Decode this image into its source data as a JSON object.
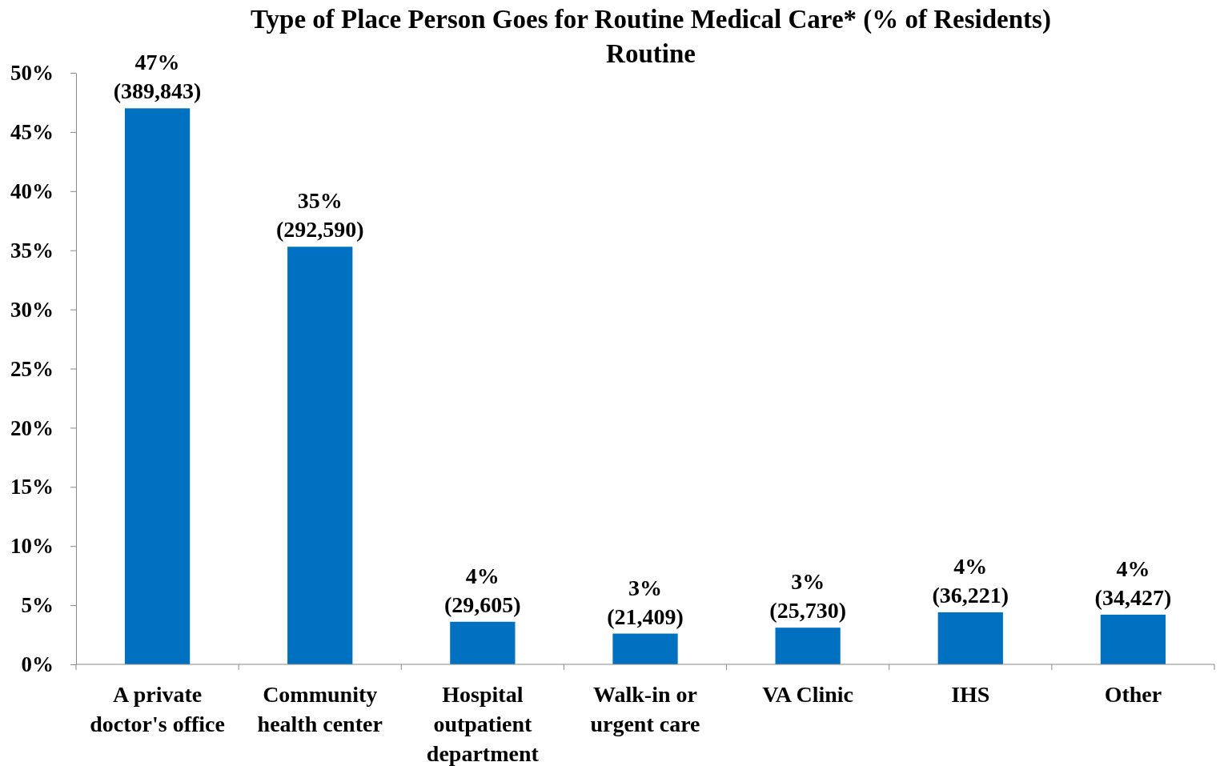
{
  "chart_data": {
    "type": "bar",
    "title": "Type of Place Person Goes for Routine Medical Care* (% of Residents)",
    "subtitle": "Routine",
    "categories": [
      "A private doctor's office",
      "Community health center",
      "Hospital outpatient department",
      "Walk-in or urgent care",
      "VA Clinic",
      "IHS",
      "Other"
    ],
    "values": [
      47,
      35.3,
      3.6,
      2.6,
      3.1,
      4.4,
      4.2
    ],
    "value_labels": [
      "47%\n(389,843)",
      "35%\n(292,590)",
      "4%\n(29,605)",
      "3%\n(21,409)",
      "3%\n(25,730)",
      "4%\n(36,221)",
      "4%\n(34,427)"
    ],
    "color": "#0070c0",
    "ylim": [
      0,
      50
    ],
    "yticks": [
      {
        "value": 0,
        "label": "0%"
      },
      {
        "value": 5,
        "label": "5%"
      },
      {
        "value": 10,
        "label": "10%"
      },
      {
        "value": 15,
        "label": "15%"
      },
      {
        "value": 20,
        "label": "20%"
      },
      {
        "value": 25,
        "label": "25%"
      },
      {
        "value": 30,
        "label": "30%"
      },
      {
        "value": 35,
        "label": "35%"
      },
      {
        "value": 40,
        "label": "40%"
      },
      {
        "value": 45,
        "label": "45%"
      },
      {
        "value": 50,
        "label": "50%"
      }
    ],
    "grid": false
  }
}
